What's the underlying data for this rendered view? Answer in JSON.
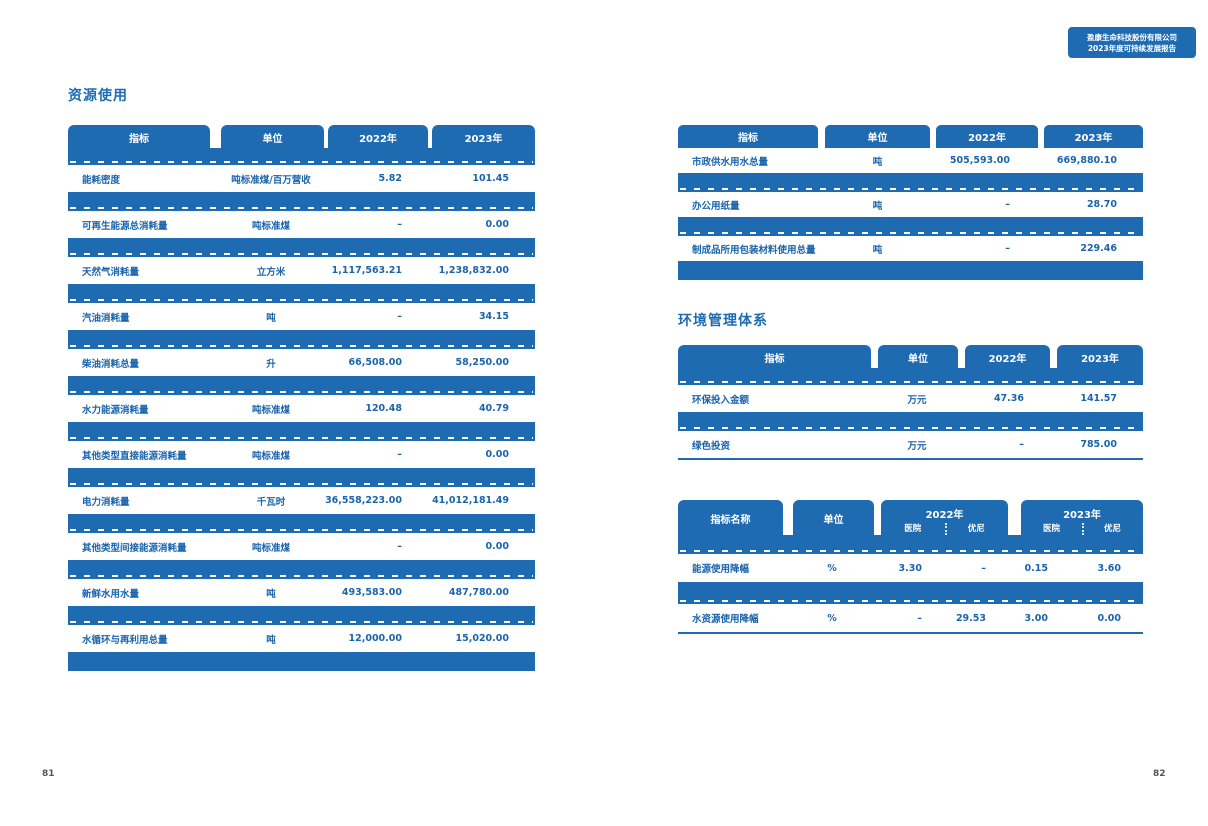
{
  "colors": {
    "blue": "#1e6bb2"
  },
  "badge": {
    "line1": "盈康生命科技股份有限公司",
    "line2": "2023年度可持续发展报告"
  },
  "left_page": {
    "title": "资源使用",
    "page_number": "81",
    "table": {
      "headers": [
        "指标",
        "单位",
        "2022年",
        "2023年"
      ],
      "rows": [
        [
          "能耗密度",
          "吨标准煤/百万营收",
          "5.82",
          "101.45"
        ],
        [
          "可再生能源总消耗量",
          "吨标准煤",
          "–",
          "0.00"
        ],
        [
          "天然气消耗量",
          "立方米",
          "1,117,563.21",
          "1,238,832.00"
        ],
        [
          "汽油消耗量",
          "吨",
          "–",
          "34.15"
        ],
        [
          "柴油消耗总量",
          "升",
          "66,508.00",
          "58,250.00"
        ],
        [
          "水力能源消耗量",
          "吨标准煤",
          "120.48",
          "40.79"
        ],
        [
          "其他类型直接能源消耗量",
          "吨标准煤",
          "–",
          "0.00"
        ],
        [
          "电力消耗量",
          "千瓦时",
          "36,558,223.00",
          "41,012,181.49"
        ],
        [
          "其他类型间接能源消耗量",
          "吨标准煤",
          "–",
          "0.00"
        ],
        [
          "新鲜水用水量",
          "吨",
          "493,583.00",
          "487,780.00"
        ],
        [
          "水循环与再利用总量",
          "吨",
          "12,000.00",
          "15,020.00"
        ]
      ]
    }
  },
  "right_page": {
    "page_number": "82",
    "water_table": {
      "headers": [
        "指标",
        "单位",
        "2022年",
        "2023年"
      ],
      "rows": [
        [
          "市政供水用水总量",
          "吨",
          "505,593.00",
          "669,880.10"
        ],
        [
          "办公用纸量",
          "吨",
          "–",
          "28.70"
        ],
        [
          "制成品所用包装材料使用总量",
          "吨",
          "–",
          "229.46"
        ]
      ]
    },
    "section_title": "环境管理体系",
    "env_table": {
      "headers": [
        "指标",
        "单位",
        "2022年",
        "2023年"
      ],
      "rows": [
        [
          "环保投入金额",
          "万元",
          "47.36",
          "141.57"
        ],
        [
          "绿色投资",
          "万元",
          "–",
          "785.00"
        ]
      ]
    },
    "reduction_table": {
      "headers": {
        "name": "指标名称",
        "unit": "单位",
        "y2022": "2022年",
        "y2023": "2023年",
        "sub_hospital": "医院",
        "sub_youni": "优尼"
      },
      "rows": [
        [
          "能源使用降幅",
          "%",
          "3.30",
          "–",
          "0.15",
          "3.60"
        ],
        [
          "水资源使用降幅",
          "%",
          "–",
          "29.53",
          "3.00",
          "0.00"
        ]
      ]
    }
  }
}
